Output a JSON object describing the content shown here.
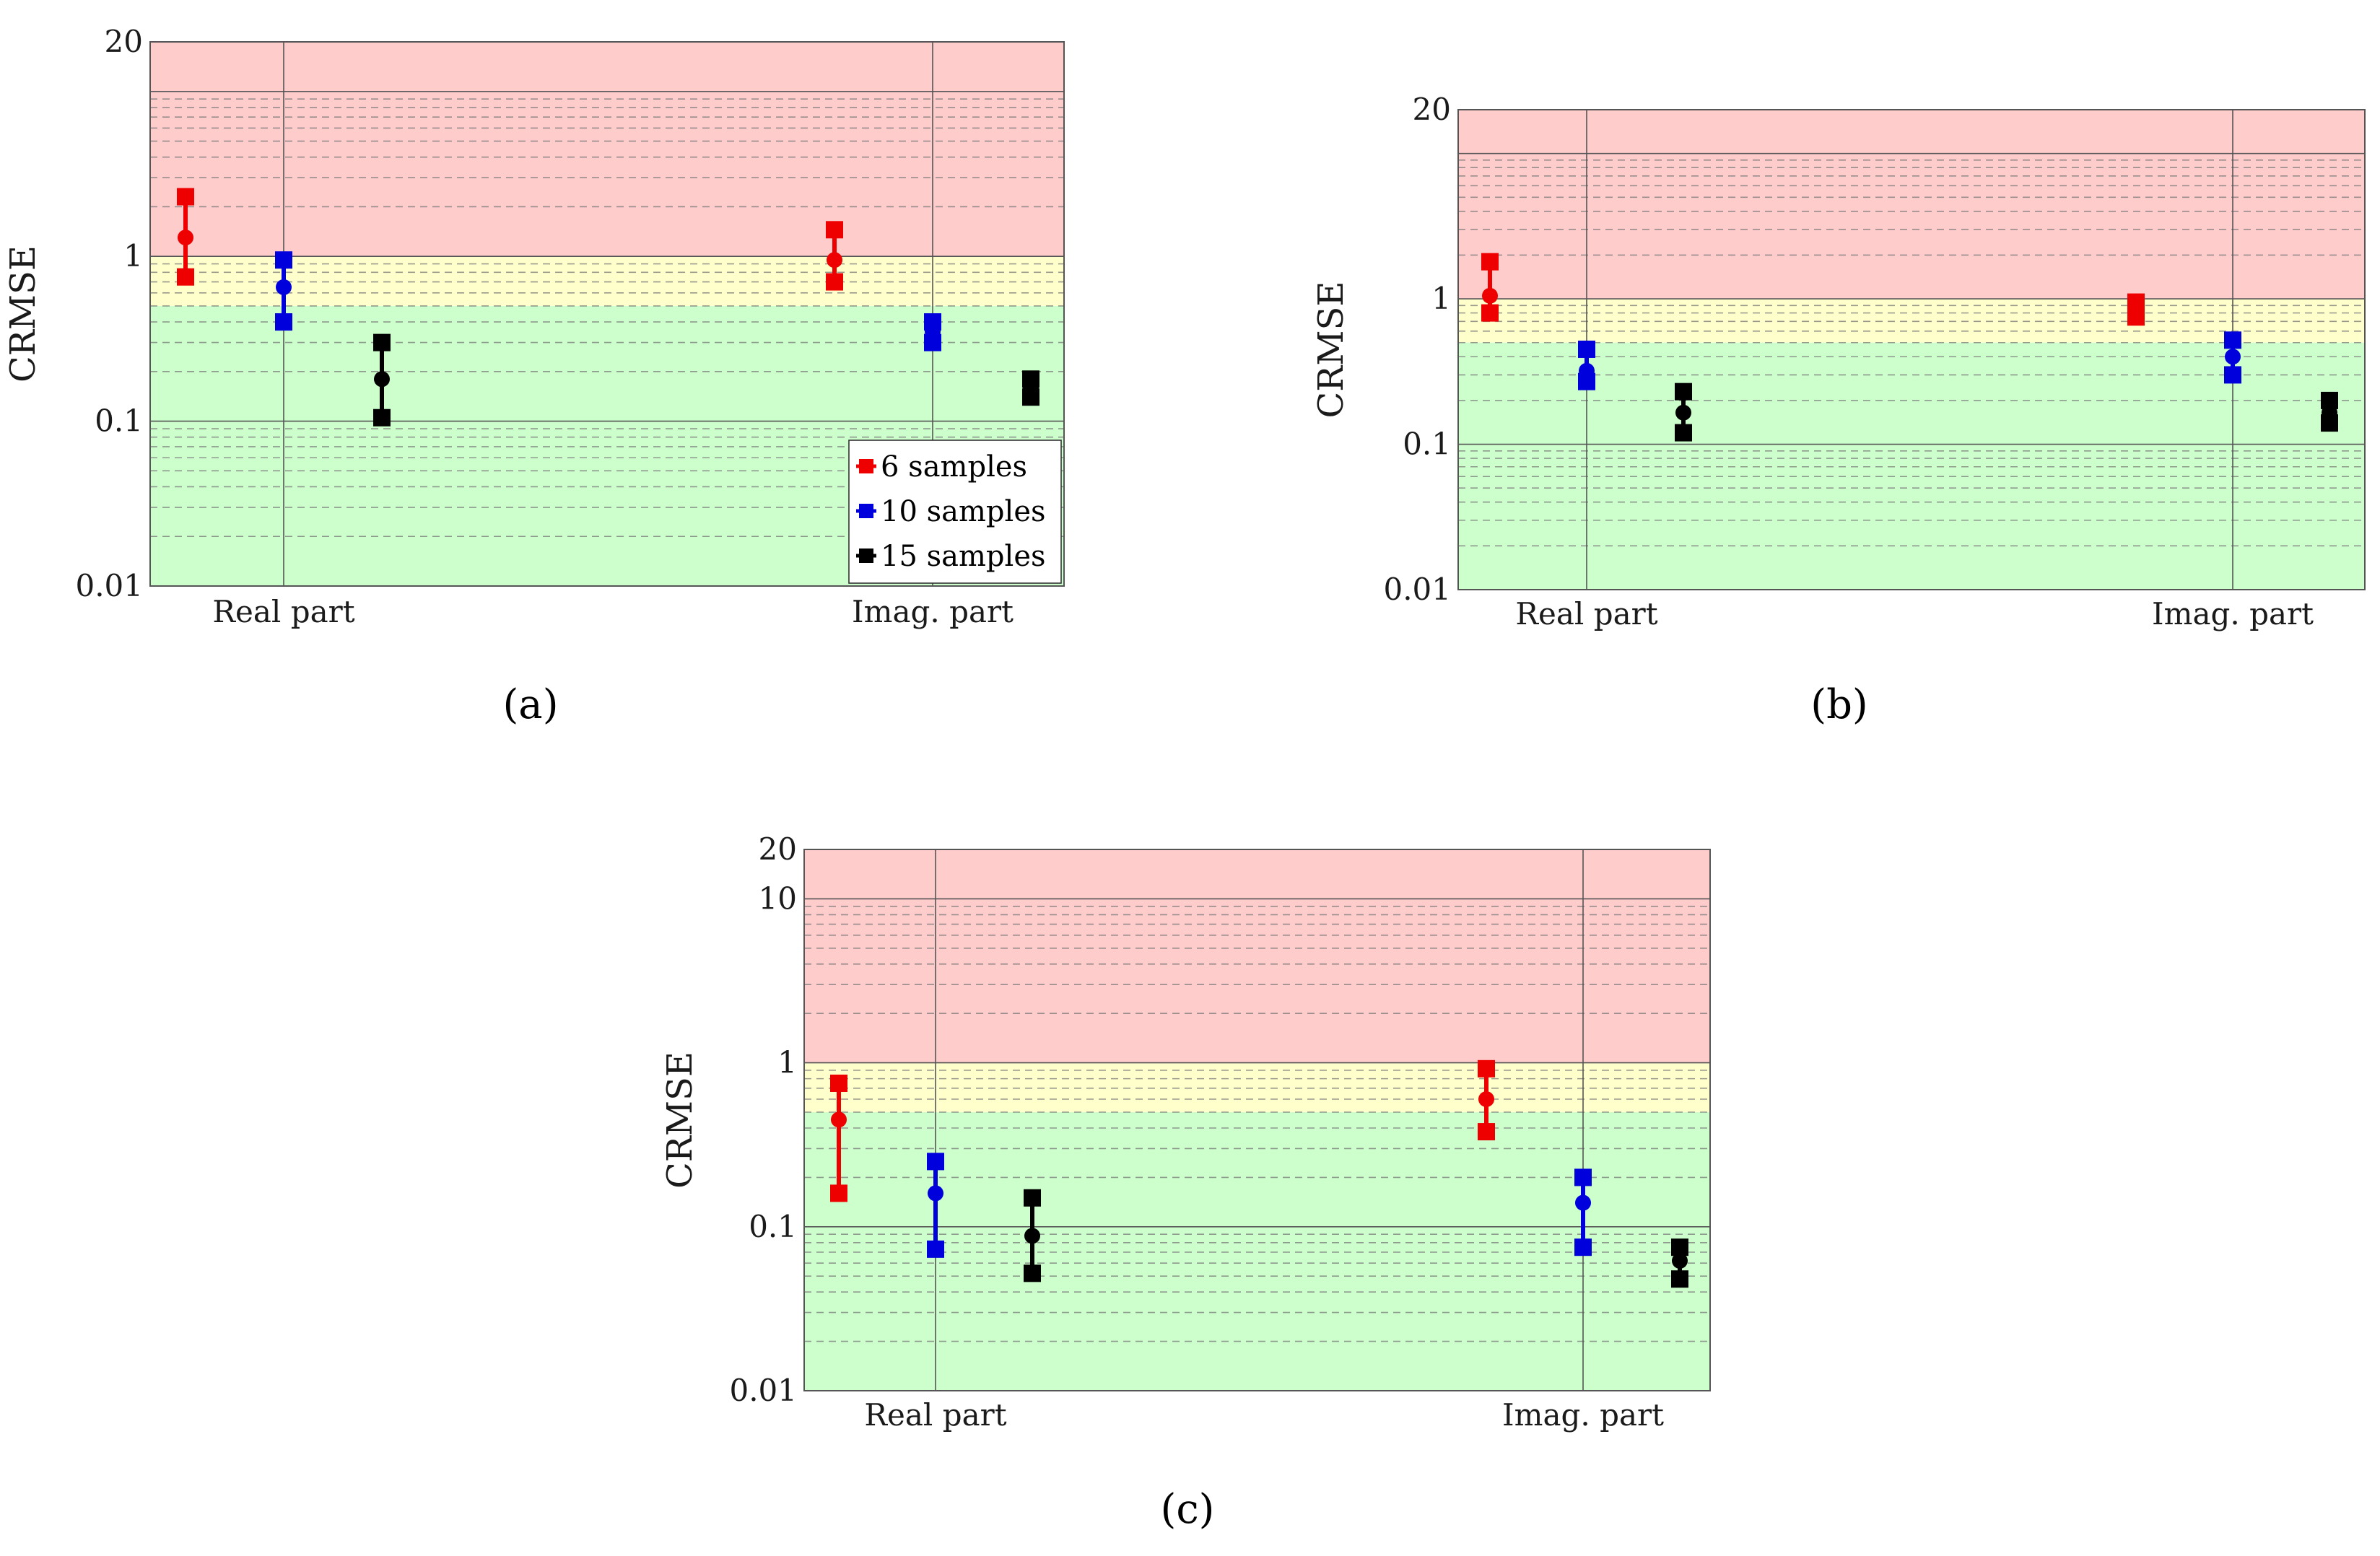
{
  "figure": {
    "colors": {
      "red_zone": "#ffcccc",
      "yellow_zone": "#ffffcc",
      "green_zone": "#ccffcc",
      "grid_minor": "#777777",
      "grid_major": "#555555",
      "axis": "#555555"
    }
  },
  "chart_data": [
    {
      "panel_label": "(a)",
      "type": "scatter",
      "title": "",
      "xlabel": "",
      "ylabel": "CRMSE",
      "yscale": "log",
      "ylim": [
        0.01,
        20
      ],
      "ytick_values": [
        0.01,
        0.1,
        1,
        20
      ],
      "ytick_labels": [
        "0.01",
        "0.1",
        "1",
        "20"
      ],
      "categories": [
        "Real part",
        "Imag. part"
      ],
      "zones": [
        {
          "name": "red",
          "from": 1,
          "to": 20,
          "color": "#ffcccc"
        },
        {
          "name": "yellow",
          "from": 0.5,
          "to": 1,
          "color": "#ffffcc"
        },
        {
          "name": "green",
          "from": 0.01,
          "to": 0.5,
          "color": "#ccffcc"
        }
      ],
      "legend": {
        "show": true,
        "position": "bottom-right",
        "entries": [
          "6 samples",
          "10 samples",
          "15 samples"
        ]
      },
      "series": [
        {
          "name": "6 samples",
          "color": "#ee0000",
          "offset": -1,
          "min": [
            0.75,
            0.7
          ],
          "mean": [
            1.3,
            0.95
          ],
          "max": [
            2.3,
            1.45
          ]
        },
        {
          "name": "10 samples",
          "color": "#0000dd",
          "offset": 0,
          "min": [
            0.4,
            0.3
          ],
          "mean": [
            0.65,
            0.35
          ],
          "max": [
            0.95,
            0.4
          ]
        },
        {
          "name": "15 samples",
          "color": "#000000",
          "offset": 1,
          "min": [
            0.105,
            0.14
          ],
          "mean": [
            0.18,
            0.16
          ],
          "max": [
            0.3,
            0.18
          ]
        }
      ]
    },
    {
      "panel_label": "(b)",
      "type": "scatter",
      "title": "",
      "xlabel": "",
      "ylabel": "CRMSE",
      "yscale": "log",
      "ylim": [
        0.01,
        20
      ],
      "ytick_values": [
        0.01,
        0.1,
        1,
        20
      ],
      "ytick_labels": [
        "0.01",
        "0.1",
        "1",
        "20"
      ],
      "categories": [
        "Real part",
        "Imag. part"
      ],
      "zones": [
        {
          "name": "red",
          "from": 1,
          "to": 20,
          "color": "#ffcccc"
        },
        {
          "name": "yellow",
          "from": 0.5,
          "to": 1,
          "color": "#ffffcc"
        },
        {
          "name": "green",
          "from": 0.01,
          "to": 0.5,
          "color": "#ccffcc"
        }
      ],
      "legend": {
        "show": false
      },
      "series": [
        {
          "name": "6 samples",
          "color": "#ee0000",
          "offset": -1,
          "min": [
            0.8,
            0.75
          ],
          "mean": [
            1.05,
            0.85
          ],
          "max": [
            1.8,
            0.95
          ]
        },
        {
          "name": "10 samples",
          "color": "#0000dd",
          "offset": 0,
          "min": [
            0.27,
            0.3
          ],
          "mean": [
            0.32,
            0.4
          ],
          "max": [
            0.45,
            0.52
          ]
        },
        {
          "name": "15 samples",
          "color": "#000000",
          "offset": 1,
          "min": [
            0.12,
            0.14
          ],
          "mean": [
            0.165,
            0.165
          ],
          "max": [
            0.23,
            0.2
          ]
        }
      ]
    },
    {
      "panel_label": "(c)",
      "type": "scatter",
      "title": "",
      "xlabel": "",
      "ylabel": "CRMSE",
      "yscale": "log",
      "ylim": [
        0.01,
        20
      ],
      "ytick_values": [
        0.01,
        0.1,
        1,
        10,
        20
      ],
      "ytick_labels": [
        "0.01",
        "0.1",
        "1",
        "10",
        "20"
      ],
      "categories": [
        "Real part",
        "Imag. part"
      ],
      "zones": [
        {
          "name": "red",
          "from": 1,
          "to": 20,
          "color": "#ffcccc"
        },
        {
          "name": "yellow",
          "from": 0.5,
          "to": 1,
          "color": "#ffffcc"
        },
        {
          "name": "green",
          "from": 0.01,
          "to": 0.5,
          "color": "#ccffcc"
        }
      ],
      "legend": {
        "show": false
      },
      "series": [
        {
          "name": "6 samples",
          "color": "#ee0000",
          "offset": -1,
          "min": [
            0.16,
            0.38
          ],
          "mean": [
            0.45,
            0.6
          ],
          "max": [
            0.75,
            0.92
          ]
        },
        {
          "name": "10 samples",
          "color": "#0000dd",
          "offset": 0,
          "min": [
            0.073,
            0.075
          ],
          "mean": [
            0.16,
            0.14
          ],
          "max": [
            0.25,
            0.2
          ]
        },
        {
          "name": "15 samples",
          "color": "#000000",
          "offset": 1,
          "min": [
            0.052,
            0.048
          ],
          "mean": [
            0.088,
            0.062
          ],
          "max": [
            0.15,
            0.075
          ]
        }
      ]
    }
  ]
}
